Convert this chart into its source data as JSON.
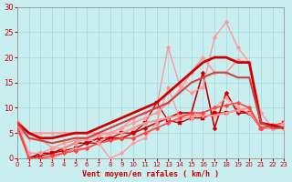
{
  "background_color": "#c8eef0",
  "grid_color": "#aadddd",
  "xlabel": "Vent moyen/en rafales ( km/h )",
  "xlim": [
    0,
    23
  ],
  "ylim": [
    0,
    30
  ],
  "yticks": [
    0,
    5,
    10,
    15,
    20,
    25,
    30
  ],
  "xticks": [
    0,
    1,
    2,
    3,
    4,
    5,
    6,
    7,
    8,
    9,
    10,
    11,
    12,
    13,
    14,
    15,
    16,
    17,
    18,
    19,
    20,
    21,
    22,
    23
  ],
  "series": [
    {
      "x": [
        0,
        1,
        2,
        3,
        4,
        5,
        6,
        7,
        8,
        9,
        10,
        11,
        12,
        13,
        14,
        15,
        16,
        17,
        18,
        19,
        20,
        21,
        22,
        23
      ],
      "y": [
        7,
        0,
        1,
        1,
        2,
        3,
        3,
        4,
        4,
        4,
        5,
        6,
        7,
        8,
        9,
        9,
        17,
        6,
        13,
        9,
        9,
        6,
        6,
        6
      ],
      "color": "#cc0000",
      "lw": 1.2,
      "marker": "D",
      "ms": 2.5
    },
    {
      "x": [
        0,
        1,
        2,
        3,
        4,
        5,
        6,
        7,
        8,
        9,
        10,
        11,
        12,
        13,
        14,
        15,
        16,
        17,
        18,
        19,
        20,
        21,
        22,
        23
      ],
      "y": [
        7,
        0,
        0.5,
        1,
        1.5,
        2,
        3,
        3,
        4,
        5,
        5,
        7,
        11,
        7.5,
        7,
        8,
        8,
        9,
        9,
        9.5,
        9,
        6,
        6.5,
        7
      ],
      "color": "#cc0000",
      "lw": 1.0,
      "marker": "s",
      "ms": 2.5
    },
    {
      "x": [
        0,
        1,
        2,
        3,
        4,
        5,
        6,
        7,
        8,
        9,
        10,
        11,
        12,
        13,
        14,
        15,
        16,
        17,
        18,
        19,
        20,
        21,
        22,
        23
      ],
      "y": [
        7.5,
        5,
        5,
        5,
        5,
        5,
        5,
        5,
        5,
        5,
        6,
        7,
        7.5,
        8,
        8.5,
        8.5,
        8.5,
        8.5,
        9,
        9.5,
        10,
        6,
        6,
        6
      ],
      "color": "#ff9999",
      "lw": 1.5,
      "marker": "^",
      "ms": 2.5
    },
    {
      "x": [
        0,
        1,
        2,
        3,
        4,
        5,
        6,
        7,
        8,
        9,
        10,
        11,
        12,
        13,
        14,
        15,
        16,
        17,
        18,
        19,
        20,
        21,
        22,
        23
      ],
      "y": [
        6,
        4,
        4,
        2,
        3,
        3.5,
        4,
        4.5,
        5,
        6,
        7,
        8,
        9,
        11,
        13.5,
        17,
        20,
        17,
        17,
        19.5,
        19,
        7,
        6,
        6
      ],
      "color": "#ff9999",
      "lw": 1.2,
      "marker": "D",
      "ms": 2.5
    },
    {
      "x": [
        0,
        1,
        2,
        3,
        4,
        5,
        6,
        7,
        8,
        9,
        10,
        11,
        12,
        13,
        14,
        15,
        16,
        17,
        18,
        19,
        20,
        21,
        22,
        23
      ],
      "y": [
        6,
        0,
        0,
        0,
        1,
        2,
        2,
        3,
        0,
        1,
        3,
        4,
        7,
        14,
        8,
        8,
        9,
        10,
        12,
        10,
        9,
        6,
        6,
        6
      ],
      "color": "#ff9999",
      "lw": 1.0,
      "marker": "o",
      "ms": 2.5
    },
    {
      "x": [
        0,
        1,
        2,
        3,
        4,
        5,
        6,
        7,
        8,
        9,
        10,
        11,
        12,
        13,
        14,
        15,
        16,
        17,
        18,
        19,
        20,
        21,
        22,
        23
      ],
      "y": [
        6,
        0,
        0,
        0.5,
        1,
        1.5,
        2,
        3,
        3.5,
        4,
        4,
        5,
        6,
        7,
        8,
        9,
        9,
        10,
        10.5,
        11,
        10,
        6,
        6.5,
        7
      ],
      "color": "#ff4444",
      "lw": 1.2,
      "marker": "D",
      "ms": 2.5
    },
    {
      "x": [
        0,
        1,
        2,
        3,
        4,
        5,
        6,
        7,
        8,
        9,
        10,
        11,
        12,
        13,
        14,
        15,
        16,
        17,
        18,
        19,
        20,
        21,
        22,
        23
      ],
      "y": [
        7,
        1,
        1,
        2,
        2,
        3,
        4,
        3,
        5,
        6,
        8,
        9,
        10,
        22,
        14.5,
        13,
        14,
        24,
        27,
        22,
        19,
        9,
        6,
        7
      ],
      "color": "#ff9999",
      "lw": 1.0,
      "marker": "D",
      "ms": 2.5
    },
    {
      "x": [
        0,
        1,
        2,
        3,
        4,
        5,
        6,
        7,
        8,
        9,
        10,
        11,
        12,
        13,
        14,
        15,
        16,
        17,
        18,
        19,
        20,
        21,
        22,
        23
      ],
      "y": [
        7,
        5,
        4,
        4,
        4.5,
        5,
        5,
        6,
        7,
        8,
        9,
        10,
        11,
        13,
        15,
        17,
        19,
        20,
        20,
        19,
        19,
        7,
        6.5,
        6
      ],
      "color": "#cc0000",
      "lw": 2.0,
      "marker": null,
      "ms": 0
    },
    {
      "x": [
        0,
        1,
        2,
        3,
        4,
        5,
        6,
        7,
        8,
        9,
        10,
        11,
        12,
        13,
        14,
        15,
        16,
        17,
        18,
        19,
        20,
        21,
        22,
        23
      ],
      "y": [
        7,
        4,
        3.5,
        3,
        3.5,
        4,
        4,
        5,
        6,
        7,
        8,
        9,
        10,
        11,
        13,
        15,
        16,
        17,
        17,
        16,
        16,
        7,
        6,
        6
      ],
      "color": "#cc4444",
      "lw": 1.5,
      "marker": null,
      "ms": 0
    }
  ]
}
